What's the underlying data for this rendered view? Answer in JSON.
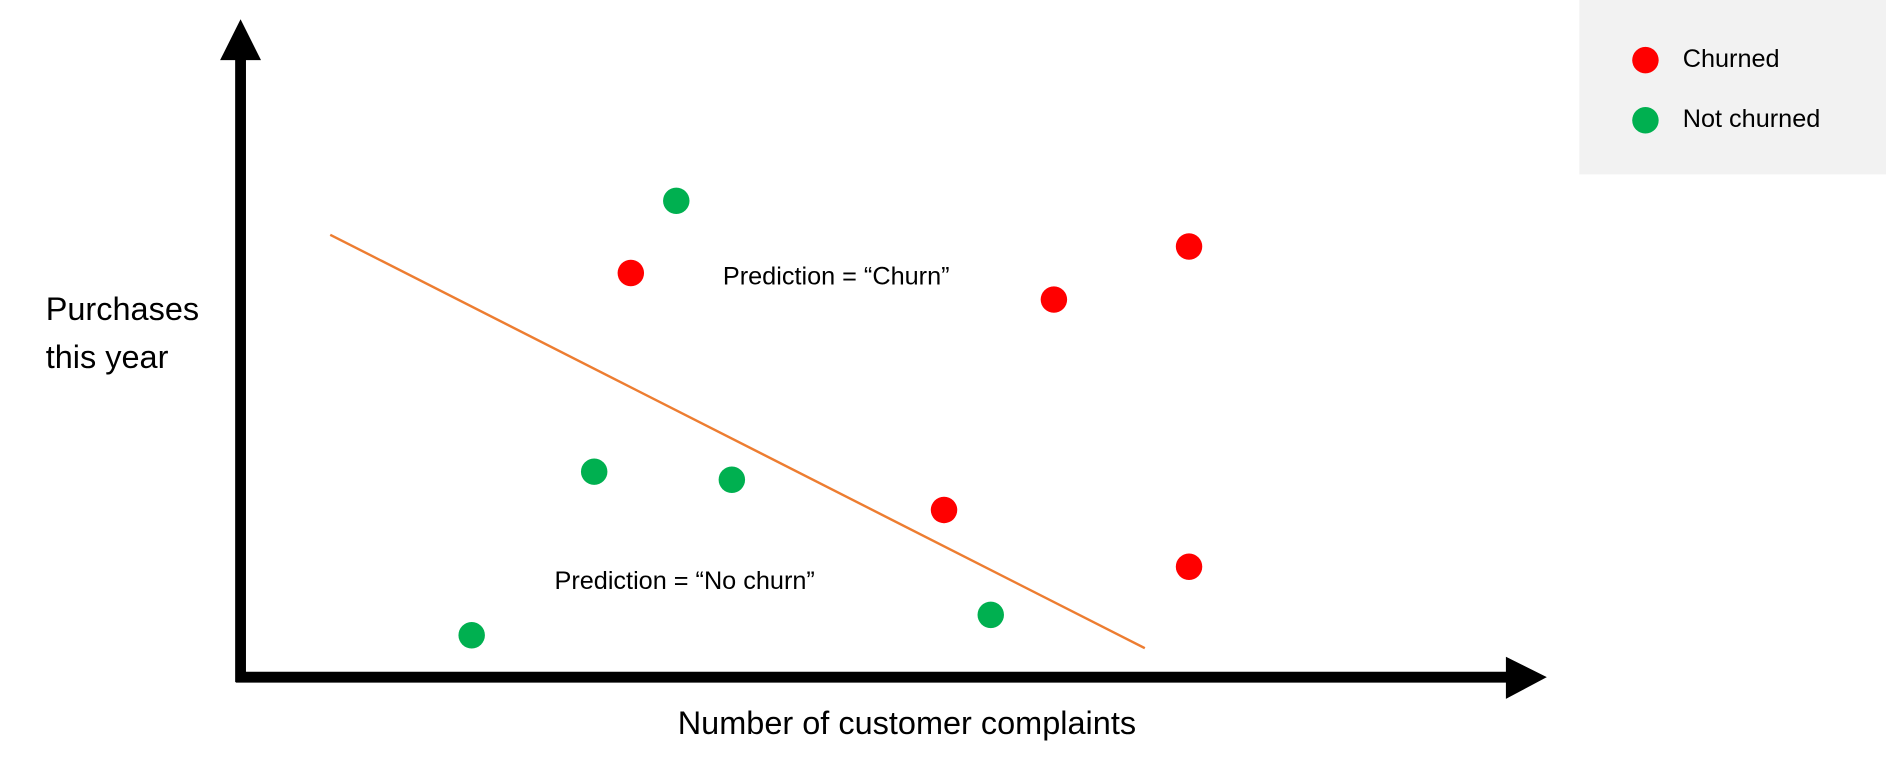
{
  "chart_data": {
    "type": "scatter",
    "xlabel": "Number of customer complaints",
    "ylabel": [
      "Purchases",
      "this year"
    ],
    "xlim": [
      0,
      10
    ],
    "ylim": [
      0,
      10
    ],
    "series": [
      {
        "name": "Churned",
        "color": "#ff0000",
        "x": [
          3.09,
          6.44,
          7.51,
          5.57,
          7.51
        ],
        "values": [
          6.55,
          6.12,
          6.98,
          2.71,
          1.79
        ]
      },
      {
        "name": "Not churned",
        "color": "#00b050",
        "x": [
          3.45,
          2.8,
          3.89,
          1.83,
          5.94
        ],
        "values": [
          7.72,
          3.33,
          3.2,
          0.68,
          1.01
        ]
      }
    ],
    "decision_boundary": {
      "color": "#ed7d31",
      "x": [
        0.71,
        7.16
      ],
      "values": [
        7.17,
        0.47
      ]
    },
    "annotations": [
      "Prediction = “Churn”",
      "Prediction = “No churn”"
    ],
    "legend": "upper right"
  }
}
